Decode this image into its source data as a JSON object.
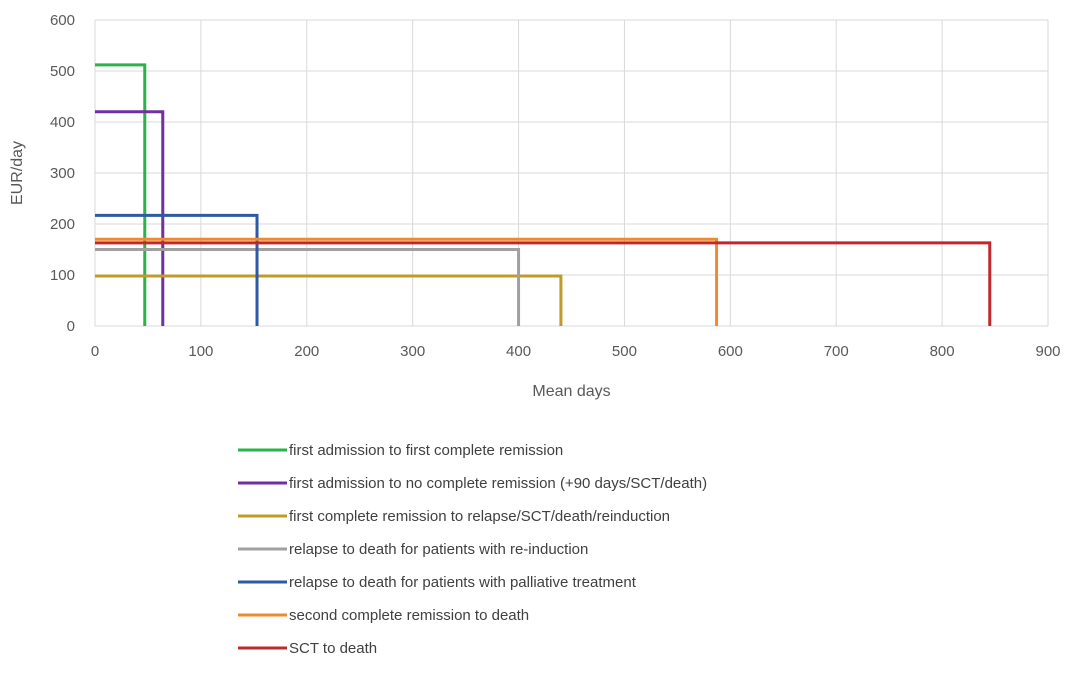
{
  "chart_data": {
    "type": "line",
    "xlabel": "Mean days",
    "ylabel": "EUR/day",
    "xlim": [
      0,
      900
    ],
    "ylim": [
      0,
      600
    ],
    "x_ticks": [
      0,
      100,
      200,
      300,
      400,
      500,
      600,
      700,
      800,
      900
    ],
    "y_ticks": [
      0,
      100,
      200,
      300,
      400,
      500,
      600
    ],
    "grid": true,
    "legend_position": "bottom",
    "series": [
      {
        "name": "first admission to first complete remission",
        "color": "#2ab34a",
        "mean_days": 47,
        "eur_per_day": 512
      },
      {
        "name": "first admission to no complete remission (+90 days/SCT/death)",
        "color": "#7030a0",
        "mean_days": 64,
        "eur_per_day": 420
      },
      {
        "name": "first complete remission to relapse/SCT/death/reinduction",
        "color": "#c09a2b",
        "mean_days": 440,
        "eur_per_day": 98
      },
      {
        "name": "relapse to death for patients with re-induction",
        "color": "#a0a0a0",
        "mean_days": 400,
        "eur_per_day": 150
      },
      {
        "name": "relapse to death for patients with palliative treatment",
        "color": "#2e5aa3",
        "mean_days": 153,
        "eur_per_day": 217
      },
      {
        "name": "second complete remission to death",
        "color": "#f08a2e",
        "mean_days": 587,
        "eur_per_day": 170
      },
      {
        "name": "SCT to death",
        "color": "#c0282d",
        "mean_days": 845,
        "eur_per_day": 163
      }
    ]
  }
}
